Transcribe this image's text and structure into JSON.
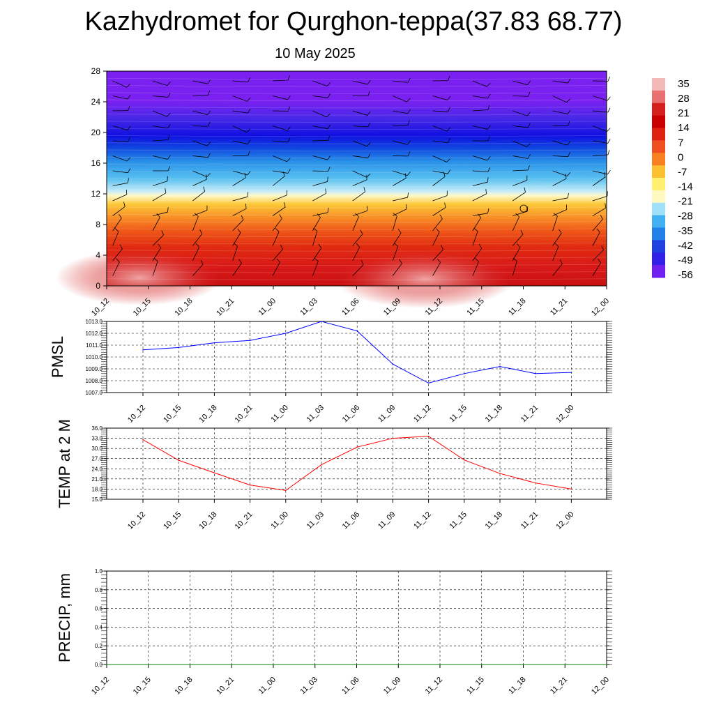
{
  "header": {
    "title": "Kazhydromet for Qurghon-teppa(37.83 68.77)",
    "subtitle": "10 May 2025"
  },
  "chart_data": [
    {
      "type": "heatmap",
      "name": "upper-air-temperature-cross-section",
      "x_ticks": [
        "10_12",
        "10_15",
        "10_18",
        "10_21",
        "11_00",
        "11_03",
        "11_06",
        "11_09",
        "11_12",
        "11_15",
        "11_18",
        "11_21",
        "12_00"
      ],
      "y_ticks": [
        0,
        4,
        8,
        12,
        16,
        20,
        24,
        28
      ],
      "ylim": [
        0,
        28
      ],
      "colorbar_labels": [
        "35",
        "28",
        "21",
        "14",
        "7",
        "0",
        "-7",
        "-14",
        "-21",
        "-28",
        "-35",
        "-42",
        "-49",
        "-56"
      ],
      "colorbar_colors": [
        "#f2b8b8",
        "#e87070",
        "#d62020",
        "#c80000",
        "#e02010",
        "#f05020",
        "#f88020",
        "#fcc030",
        "#fff070",
        "#fff8c0",
        "#a0e0f8",
        "#40b0f0",
        "#2080e8",
        "#2040e0",
        "#3020e8",
        "#7020f0"
      ],
      "wind_barbs": true
    },
    {
      "type": "line",
      "name": "pmsl",
      "ylabel": "PMSL",
      "categories": [
        "10_12",
        "10_15",
        "10_18",
        "10_21",
        "11_00",
        "11_03",
        "11_06",
        "11_09",
        "11_12",
        "11_15",
        "11_18",
        "11_21",
        "12_00"
      ],
      "y_ticks": [
        "1007.0",
        "1008.0",
        "1009.0",
        "1010.0",
        "1011.0",
        "1012.0",
        "1013.0"
      ],
      "ylim": [
        1007,
        1013
      ],
      "values": [
        1010.6,
        1010.8,
        1011.2,
        1011.4,
        1012.0,
        1013.0,
        1012.2,
        1009.4,
        1007.8,
        1008.6,
        1009.2,
        1008.6,
        1008.7
      ],
      "color": "#0000ff",
      "grid": true
    },
    {
      "type": "line",
      "name": "temp-2m",
      "ylabel": "TEMP at 2 M",
      "categories": [
        "10_12",
        "10_15",
        "10_18",
        "10_21",
        "11_00",
        "11_03",
        "11_06",
        "11_09",
        "11_12",
        "11_15",
        "11_18",
        "11_21",
        "12_00"
      ],
      "y_ticks": [
        "15.0",
        "18.0",
        "21.0",
        "24.0",
        "27.0",
        "30.0",
        "33.0",
        "36.0"
      ],
      "ylim": [
        15,
        36
      ],
      "values": [
        32.6,
        26.5,
        22.8,
        19.2,
        17.6,
        25.2,
        30.4,
        33.0,
        33.6,
        26.6,
        22.6,
        19.8,
        18.0
      ],
      "color": "#ff0000",
      "grid": true
    },
    {
      "type": "line",
      "name": "precip",
      "ylabel": "PRECIP, mm",
      "categories": [
        "10_12",
        "10_15",
        "10_18",
        "10_21",
        "11_00",
        "11_03",
        "11_06",
        "11_09",
        "11_12",
        "11_15",
        "11_18",
        "11_21",
        "12_00"
      ],
      "y_ticks": [
        "0.0",
        "0.2",
        "0.4",
        "0.6",
        "0.8",
        "1.0"
      ],
      "ylim": [
        0,
        1
      ],
      "values": [
        0,
        0,
        0,
        0,
        0,
        0,
        0,
        0,
        0,
        0,
        0,
        0,
        0
      ],
      "color": "#008000",
      "grid": true
    }
  ]
}
